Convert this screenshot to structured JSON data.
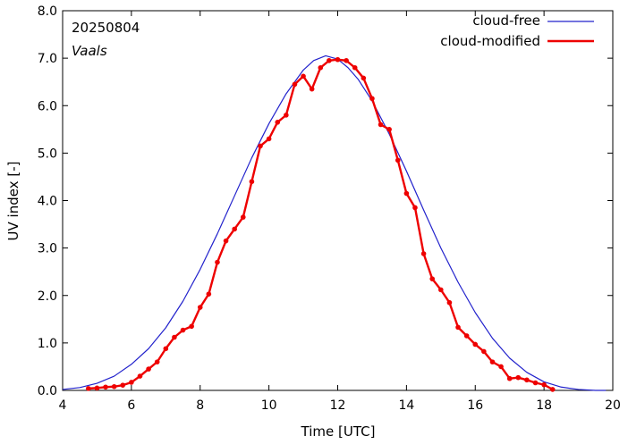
{
  "chart_data": {
    "type": "line",
    "annotations": {
      "date": "20250804",
      "station": "Vaals"
    },
    "xlabel": "Time  [UTC]",
    "ylabel": "UV index  [-]",
    "xlim": [
      4,
      20
    ],
    "ylim": [
      0,
      8
    ],
    "xticks": [
      4,
      6,
      8,
      10,
      12,
      14,
      16,
      18,
      20
    ],
    "xtick_labels": [
      "4",
      "6",
      "8",
      "10",
      "12",
      "14",
      "16",
      "18",
      "20"
    ],
    "yticks": [
      0,
      1,
      2,
      3,
      4,
      5,
      6,
      7,
      8
    ],
    "ytick_labels": [
      "0.0",
      "1.0",
      "2.0",
      "3.0",
      "4.0",
      "5.0",
      "6.0",
      "7.0",
      "8.0"
    ],
    "grid": false,
    "legend_position": "top-right",
    "colors": {
      "cloud_free": "#2222cc",
      "cloud_modified": "#ee0000"
    },
    "series": [
      {
        "name": "cloud-free",
        "style": "line",
        "x": [
          4.0,
          4.5,
          5.0,
          5.5,
          6.0,
          6.5,
          7.0,
          7.5,
          8.0,
          8.5,
          9.0,
          9.5,
          10.0,
          10.5,
          11.0,
          11.3,
          11.65,
          12.0,
          12.3,
          12.6,
          13.0,
          13.5,
          14.0,
          14.5,
          15.0,
          15.5,
          16.0,
          16.5,
          17.0,
          17.5,
          18.0,
          18.5,
          19.0,
          19.5,
          19.8
        ],
        "y": [
          0.02,
          0.06,
          0.15,
          0.3,
          0.55,
          0.88,
          1.32,
          1.88,
          2.55,
          3.3,
          4.1,
          4.9,
          5.62,
          6.25,
          6.75,
          6.95,
          7.05,
          6.98,
          6.8,
          6.55,
          6.1,
          5.4,
          4.62,
          3.8,
          3.0,
          2.28,
          1.64,
          1.1,
          0.68,
          0.38,
          0.18,
          0.07,
          0.02,
          0.0,
          0.0
        ]
      },
      {
        "name": "cloud-modified",
        "style": "line+points",
        "x": [
          4.75,
          5.0,
          5.25,
          5.5,
          5.75,
          6.0,
          6.25,
          6.5,
          6.75,
          7.0,
          7.25,
          7.5,
          7.75,
          8.0,
          8.25,
          8.5,
          8.75,
          9.0,
          9.25,
          9.5,
          9.75,
          10.0,
          10.25,
          10.5,
          10.75,
          11.0,
          11.25,
          11.5,
          11.75,
          12.0,
          12.25,
          12.5,
          12.75,
          13.0,
          13.25,
          13.5,
          13.75,
          14.0,
          14.25,
          14.5,
          14.75,
          15.0,
          15.25,
          15.5,
          15.75,
          16.0,
          16.25,
          16.5,
          16.75,
          17.0,
          17.25,
          17.5,
          17.75,
          18.0,
          18.25
        ],
        "y": [
          0.04,
          0.05,
          0.07,
          0.08,
          0.11,
          0.17,
          0.3,
          0.45,
          0.6,
          0.88,
          1.12,
          1.27,
          1.35,
          1.75,
          2.03,
          2.7,
          3.15,
          3.4,
          3.65,
          4.4,
          5.15,
          5.3,
          5.65,
          5.8,
          6.45,
          6.62,
          6.35,
          6.8,
          6.95,
          6.97,
          6.95,
          6.8,
          6.58,
          6.15,
          5.6,
          5.5,
          4.85,
          4.15,
          3.85,
          2.88,
          2.35,
          2.12,
          1.85,
          1.33,
          1.15,
          0.97,
          0.82,
          0.6,
          0.5,
          0.25,
          0.27,
          0.22,
          0.16,
          0.12,
          0.02
        ]
      }
    ]
  }
}
